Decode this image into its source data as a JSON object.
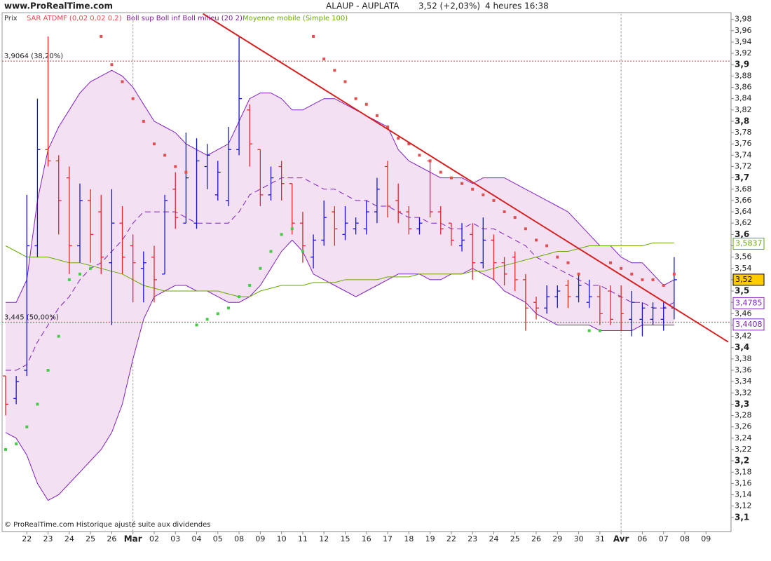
{
  "chart_data": {
    "type": "ohlc",
    "site": "www.ProRealTime.com",
    "title_parts": [
      "ALAUP - AUPLATA",
      "3,52 (+2,03%)",
      "4 heures  16:38"
    ],
    "copyright": "© ProRealTime.com Historique ajusté suite aux dividendes",
    "legend": [
      {
        "label": "Prix",
        "color": "#333333"
      },
      {
        "label": "SAR ATDMF (0,02 0,02 0,2)",
        "color": "#e05050"
      },
      {
        "label": "Boll sup Boll inf Boll milieu (20 2)",
        "color": "#8020a0"
      },
      {
        "label": "Moyenne mobile (Simple 100)",
        "color": "#66aa00"
      }
    ],
    "categories": [
      null,
      null,
      "22",
      null,
      "23",
      null,
      "24",
      null,
      "25",
      null,
      "26",
      null,
      "Mar",
      null,
      "02",
      null,
      "03",
      null,
      "04",
      null,
      "05",
      null,
      "08",
      null,
      "09",
      null,
      "10",
      null,
      "11",
      null,
      "12",
      null,
      "15",
      null,
      "16",
      null,
      "17",
      null,
      "18",
      null,
      "19",
      null,
      "22",
      null,
      "23",
      null,
      "24",
      null,
      "25",
      null,
      "26",
      null,
      "29",
      null,
      "30",
      null,
      "31",
      null,
      "Avr",
      null,
      "06",
      null,
      "07",
      null,
      "08",
      null,
      "09",
      null
    ],
    "xlim": [
      -0.33,
      68.36
    ],
    "ylim": [
      3.075,
      3.992
    ],
    "yticks": [
      {
        "value": 3.1,
        "label": "3,1"
      },
      {
        "value": 3.12,
        "label": "3,12"
      },
      {
        "value": 3.14,
        "label": "3,14"
      },
      {
        "value": 3.16,
        "label": "3,16"
      },
      {
        "value": 3.18,
        "label": "3,18"
      },
      {
        "value": 3.2,
        "label": "3,2"
      },
      {
        "value": 3.22,
        "label": "3,22"
      },
      {
        "value": 3.24,
        "label": "3,24"
      },
      {
        "value": 3.26,
        "label": "3,26"
      },
      {
        "value": 3.28,
        "label": "3,28"
      },
      {
        "value": 3.3,
        "label": "3,3"
      },
      {
        "value": 3.32,
        "label": "3,32"
      },
      {
        "value": 3.34,
        "label": "3,34"
      },
      {
        "value": 3.36,
        "label": "3,36"
      },
      {
        "value": 3.38,
        "label": "3,38"
      },
      {
        "value": 3.4,
        "label": "3,4"
      },
      {
        "value": 3.42,
        "label": "3,42"
      },
      {
        "value": 3.44,
        "label": "3,44"
      },
      {
        "value": 3.46,
        "label": "3,46"
      },
      {
        "value": 3.48,
        "label": "3,48"
      },
      {
        "value": 3.5,
        "label": "3,5"
      },
      {
        "value": 3.52,
        "label": "3,52"
      },
      {
        "value": 3.54,
        "label": "3,54"
      },
      {
        "value": 3.56,
        "label": "3,56"
      },
      {
        "value": 3.58,
        "label": "3,58"
      },
      {
        "value": 3.6,
        "label": "3,6"
      },
      {
        "value": 3.62,
        "label": "3,62"
      },
      {
        "value": 3.64,
        "label": "3,64"
      },
      {
        "value": 3.66,
        "label": "3,66"
      },
      {
        "value": 3.68,
        "label": "3,68"
      },
      {
        "value": 3.7,
        "label": "3,7"
      },
      {
        "value": 3.72,
        "label": "3,72"
      },
      {
        "value": 3.74,
        "label": "3,74"
      },
      {
        "value": 3.76,
        "label": "3,76"
      },
      {
        "value": 3.78,
        "label": "3,78"
      },
      {
        "value": 3.8,
        "label": "3,8"
      },
      {
        "value": 3.82,
        "label": "3,82"
      },
      {
        "value": 3.84,
        "label": "3,84"
      },
      {
        "value": 3.86,
        "label": "3,86"
      },
      {
        "value": 3.88,
        "label": "3,88"
      },
      {
        "value": 3.9,
        "label": "3,9"
      },
      {
        "value": 3.92,
        "label": "3,92"
      },
      {
        "value": 3.94,
        "label": "3,94"
      },
      {
        "value": 3.96,
        "label": "3,96"
      },
      {
        "value": 3.98,
        "label": "3,98"
      }
    ],
    "ohlc": {
      "up_color": "#1414d8",
      "down_color": "#e02828",
      "open": [
        3.35,
        3.31,
        3.36,
        3.58,
        3.75,
        3.73,
        3.7,
        3.58,
        3.66,
        3.64,
        3.55,
        3.62,
        3.58,
        3.54,
        3.56,
        3.53,
        3.68,
        3.62,
        3.62,
        3.72,
        3.67,
        3.66,
        3.75,
        3.82,
        3.75,
        3.67,
        3.72,
        3.69,
        3.62,
        3.56,
        3.59,
        3.64,
        3.6,
        3.61,
        3.61,
        3.64,
        3.72,
        3.66,
        3.64,
        3.61,
        3.73,
        3.64,
        3.62,
        3.58,
        3.6,
        3.55,
        3.59,
        3.55,
        3.56,
        3.52,
        3.48,
        3.47,
        3.49,
        3.51,
        3.49,
        3.48,
        3.49,
        3.5,
        3.49,
        3.45,
        3.45,
        3.45,
        3.45,
        3.47,
        null,
        null,
        null,
        null
      ],
      "high": [
        3.35,
        3.35,
        3.67,
        3.84,
        3.95,
        3.74,
        3.72,
        3.69,
        3.68,
        3.67,
        3.68,
        3.65,
        3.6,
        3.57,
        3.58,
        3.67,
        3.71,
        3.78,
        3.77,
        3.76,
        3.73,
        3.79,
        3.95,
        3.83,
        3.75,
        3.72,
        3.73,
        3.69,
        3.64,
        3.6,
        3.66,
        3.65,
        3.65,
        3.63,
        3.66,
        3.7,
        3.73,
        3.69,
        3.65,
        3.63,
        3.73,
        3.65,
        3.62,
        3.62,
        3.62,
        3.63,
        3.6,
        3.56,
        3.57,
        3.53,
        3.49,
        3.51,
        3.51,
        3.52,
        3.53,
        3.52,
        3.51,
        3.51,
        3.51,
        3.5,
        3.48,
        3.48,
        3.48,
        3.56,
        null,
        null,
        null,
        null
      ],
      "low": [
        3.28,
        3.3,
        3.35,
        3.56,
        3.72,
        3.6,
        3.53,
        3.55,
        3.55,
        3.53,
        3.44,
        3.53,
        3.48,
        3.48,
        3.48,
        3.53,
        3.61,
        3.62,
        3.61,
        3.68,
        3.66,
        3.65,
        3.74,
        3.72,
        3.65,
        3.66,
        3.66,
        3.6,
        3.55,
        3.54,
        3.58,
        3.58,
        3.59,
        3.6,
        3.6,
        3.62,
        3.63,
        3.62,
        3.6,
        3.6,
        3.63,
        3.6,
        3.58,
        3.57,
        3.52,
        3.54,
        3.52,
        3.51,
        3.5,
        3.43,
        3.45,
        3.46,
        3.47,
        3.47,
        3.48,
        3.47,
        3.44,
        3.44,
        3.43,
        3.42,
        3.42,
        3.44,
        3.43,
        3.45,
        null,
        null,
        null,
        null
      ],
      "close": [
        3.3,
        3.34,
        3.58,
        3.75,
        3.73,
        3.66,
        3.58,
        3.66,
        3.6,
        3.56,
        3.62,
        3.56,
        3.55,
        3.55,
        3.52,
        3.66,
        3.63,
        3.7,
        3.73,
        3.74,
        3.71,
        3.75,
        3.84,
        3.76,
        3.67,
        3.7,
        3.69,
        3.62,
        3.58,
        3.59,
        3.63,
        3.61,
        3.62,
        3.62,
        3.64,
        3.68,
        3.65,
        3.64,
        3.61,
        3.62,
        3.64,
        3.61,
        3.59,
        3.59,
        3.55,
        3.59,
        3.55,
        3.53,
        3.52,
        3.47,
        3.47,
        3.49,
        3.5,
        3.49,
        3.51,
        3.49,
        3.46,
        3.45,
        3.46,
        3.48,
        3.47,
        3.47,
        3.47,
        3.52,
        null,
        null,
        null,
        null
      ]
    },
    "bollinger": {
      "color": "#8020c0",
      "fill": "#f3e0f3",
      "upper": [
        3.48,
        3.48,
        3.52,
        3.66,
        3.75,
        3.79,
        3.82,
        3.85,
        3.87,
        3.88,
        3.89,
        3.88,
        3.86,
        3.83,
        3.8,
        3.79,
        3.78,
        3.76,
        3.75,
        3.74,
        3.75,
        3.76,
        3.8,
        3.84,
        3.85,
        3.85,
        3.84,
        3.82,
        3.82,
        3.83,
        3.84,
        3.84,
        3.83,
        3.82,
        3.81,
        3.8,
        3.79,
        3.75,
        3.73,
        3.72,
        3.71,
        3.7,
        3.7,
        3.7,
        3.69,
        3.7,
        3.7,
        3.7,
        3.69,
        3.68,
        3.67,
        3.66,
        3.65,
        3.64,
        3.62,
        3.6,
        3.58,
        3.58,
        3.56,
        3.55,
        3.55,
        3.53,
        3.51,
        3.52,
        null,
        null,
        null,
        null
      ],
      "middle": [
        3.36,
        3.36,
        3.37,
        3.41,
        3.44,
        3.47,
        3.49,
        3.52,
        3.54,
        3.55,
        3.57,
        3.59,
        3.62,
        3.64,
        3.64,
        3.64,
        3.64,
        3.63,
        3.62,
        3.62,
        3.62,
        3.62,
        3.64,
        3.67,
        3.68,
        3.69,
        3.7,
        3.7,
        3.7,
        3.69,
        3.68,
        3.68,
        3.67,
        3.66,
        3.66,
        3.65,
        3.65,
        3.64,
        3.63,
        3.63,
        3.62,
        3.62,
        3.61,
        3.61,
        3.62,
        3.61,
        3.61,
        3.6,
        3.59,
        3.58,
        3.56,
        3.55,
        3.54,
        3.53,
        3.52,
        3.51,
        3.51,
        3.5,
        3.49,
        3.48,
        3.48,
        3.47,
        3.47,
        3.48,
        null,
        null,
        null,
        null
      ],
      "lower": [
        3.25,
        3.24,
        3.21,
        3.16,
        3.13,
        3.14,
        3.16,
        3.18,
        3.2,
        3.22,
        3.25,
        3.3,
        3.38,
        3.45,
        3.49,
        3.5,
        3.51,
        3.51,
        3.5,
        3.5,
        3.49,
        3.48,
        3.48,
        3.49,
        3.51,
        3.54,
        3.57,
        3.59,
        3.57,
        3.53,
        3.52,
        3.51,
        3.5,
        3.49,
        3.5,
        3.51,
        3.52,
        3.53,
        3.53,
        3.53,
        3.52,
        3.52,
        3.53,
        3.53,
        3.54,
        3.53,
        3.52,
        3.5,
        3.49,
        3.48,
        3.46,
        3.45,
        3.44,
        3.44,
        3.44,
        3.44,
        3.43,
        3.43,
        3.43,
        3.43,
        3.44,
        3.44,
        3.44,
        3.44,
        null,
        null,
        null,
        null
      ]
    },
    "moving_average": {
      "color": "#66aa00",
      "values": [
        3.58,
        3.57,
        3.56,
        3.56,
        3.56,
        3.555,
        3.55,
        3.55,
        3.545,
        3.54,
        3.535,
        3.53,
        3.52,
        3.51,
        3.505,
        3.5,
        3.5,
        3.5,
        3.5,
        3.5,
        3.5,
        3.495,
        3.49,
        3.49,
        3.5,
        3.505,
        3.51,
        3.51,
        3.51,
        3.515,
        3.515,
        3.515,
        3.52,
        3.52,
        3.52,
        3.52,
        3.525,
        3.525,
        3.525,
        3.53,
        3.53,
        3.53,
        3.53,
        3.53,
        3.535,
        3.535,
        3.54,
        3.545,
        3.55,
        3.555,
        3.56,
        3.565,
        3.57,
        3.57,
        3.575,
        3.58,
        3.58,
        3.58,
        3.58,
        3.58,
        3.58,
        3.585,
        3.585,
        3.585,
        null,
        null,
        null,
        null
      ]
    },
    "sar": {
      "up_color": "#44cc44",
      "down_color": "#e05050",
      "values": [
        3.22,
        3.23,
        3.26,
        3.3,
        3.36,
        3.42,
        3.52,
        3.53,
        3.54,
        3.95,
        3.9,
        3.87,
        3.84,
        3.8,
        3.76,
        3.74,
        3.72,
        3.71,
        3.44,
        3.45,
        3.46,
        3.47,
        3.49,
        3.51,
        3.54,
        3.57,
        3.6,
        3.61,
        3.57,
        3.95,
        3.91,
        3.89,
        3.87,
        3.84,
        3.83,
        3.81,
        3.79,
        3.77,
        3.76,
        3.74,
        3.73,
        3.71,
        3.7,
        3.69,
        3.68,
        3.67,
        3.66,
        3.64,
        3.63,
        3.61,
        3.59,
        3.58,
        3.56,
        3.55,
        3.53,
        3.43,
        3.43,
        3.55,
        3.54,
        3.53,
        3.52,
        3.52,
        3.51,
        3.53,
        null,
        null,
        null,
        null
      ]
    },
    "trendline": {
      "color": "#d62020",
      "points": [
        [
          18.6,
          3.99
        ],
        [
          68.1,
          3.41
        ]
      ]
    },
    "levels": [
      {
        "value": 3.9064,
        "label": "3,9064 (38,20%)",
        "color": "#d04040"
      },
      {
        "value": 3.445,
        "label": "3,445 (50,00%)",
        "color": "#d04040"
      }
    ],
    "price_tags": [
      {
        "value": 3.5837,
        "label": "3,5837",
        "color": "#66aa00",
        "fill": "#ffffff"
      },
      {
        "value": 3.52,
        "label": "3,52",
        "color": "#000000",
        "fill": "#ffcc00"
      },
      {
        "value": 3.4785,
        "label": "3,4785",
        "color": "#8020c0",
        "fill": "#ffffff"
      },
      {
        "value": 3.4408,
        "label": "3,4408",
        "color": "#8020c0",
        "fill": "#ffffff"
      }
    ]
  }
}
